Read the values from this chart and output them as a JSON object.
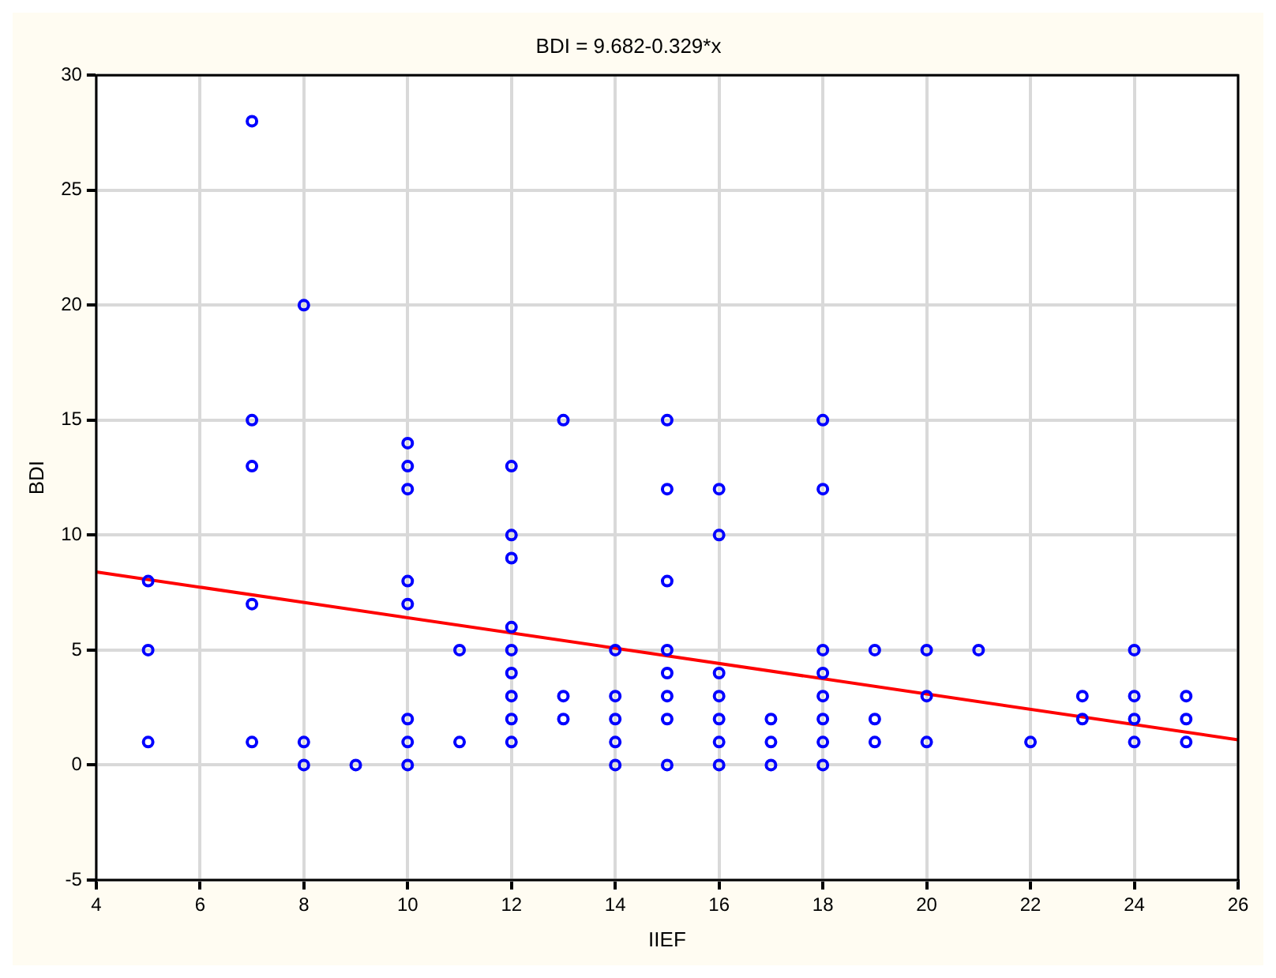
{
  "chart_data": {
    "type": "scatter",
    "title": "BDI = 9.682-0.329*x",
    "xlabel": "IIEF",
    "ylabel": "BDI",
    "xlim": [
      4,
      26
    ],
    "xticks": [
      4,
      6,
      8,
      10,
      12,
      14,
      16,
      18,
      20,
      22,
      24,
      26
    ],
    "ylim": [
      -5,
      30
    ],
    "yticks": [
      -5,
      0,
      5,
      10,
      15,
      20,
      25,
      30
    ],
    "grid": true,
    "legend": false,
    "marker": "circle",
    "series": [
      {
        "color": "#0000ff",
        "x": [
          5,
          5,
          5,
          7,
          7,
          7,
          7,
          7,
          8,
          8,
          8,
          9,
          10,
          10,
          10,
          10,
          10,
          10,
          10,
          10,
          11,
          11,
          12,
          12,
          12,
          12,
          12,
          12,
          12,
          12,
          12,
          13,
          13,
          13,
          14,
          14,
          14,
          14,
          14,
          15,
          15,
          15,
          15,
          15,
          15,
          15,
          15,
          16,
          16,
          16,
          16,
          16,
          16,
          16,
          17,
          17,
          17,
          18,
          18,
          18,
          18,
          18,
          18,
          18,
          18,
          19,
          19,
          19,
          20,
          20,
          20,
          21,
          22,
          23,
          23,
          24,
          24,
          24,
          24,
          25,
          25,
          25
        ],
        "values": [
          8,
          5,
          1,
          28,
          15,
          13,
          7,
          1,
          20,
          1,
          0,
          0,
          14,
          13,
          12,
          8,
          7,
          2,
          1,
          0,
          5,
          1,
          13,
          10,
          9,
          6,
          5,
          4,
          3,
          2,
          1,
          15,
          3,
          2,
          5,
          3,
          2,
          1,
          0,
          15,
          12,
          8,
          5,
          4,
          3,
          2,
          0,
          12,
          10,
          4,
          3,
          2,
          1,
          0,
          2,
          1,
          0,
          15,
          12,
          5,
          4,
          3,
          2,
          1,
          0,
          5,
          2,
          1,
          5,
          3,
          1,
          5,
          1,
          3,
          2,
          5,
          3,
          2,
          1,
          3,
          2,
          1
        ]
      },
      {
        "type": "line",
        "color": "#ff0000",
        "marker": "none",
        "line_style": "solid",
        "x": [
          4,
          26
        ],
        "values": [
          8.4,
          1.1
        ]
      }
    ]
  }
}
